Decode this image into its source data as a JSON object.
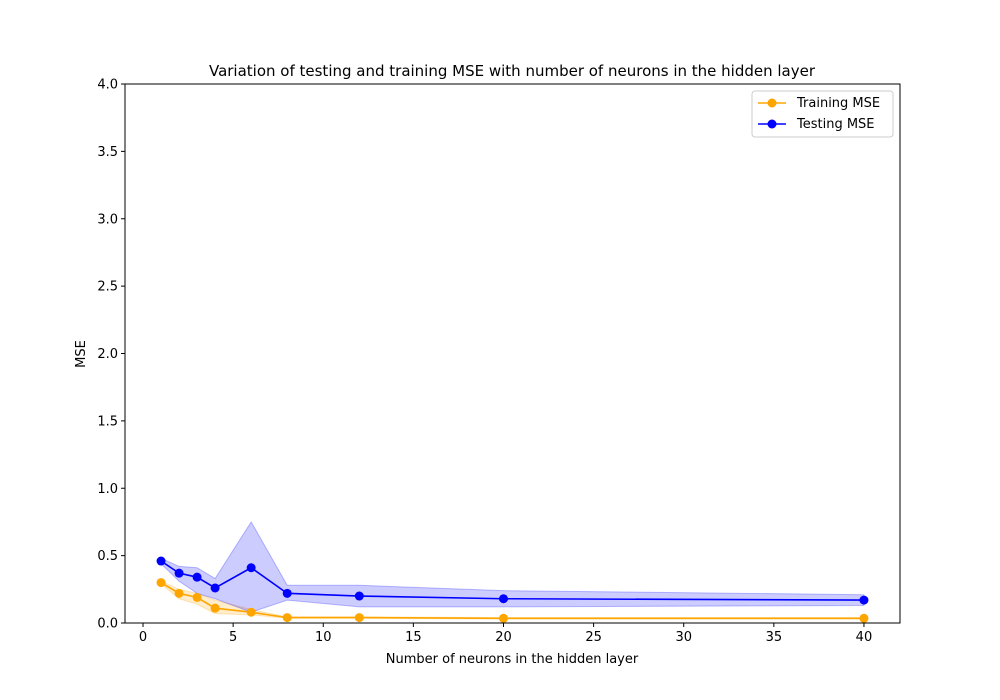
{
  "chart_data": {
    "type": "line",
    "title": "Variation of testing and training MSE with number of neurons in the hidden layer",
    "xlabel": "Number of neurons in the hidden layer",
    "ylabel": "MSE",
    "xlim": [
      -1,
      42
    ],
    "ylim": [
      0,
      4
    ],
    "xticks": [
      0,
      5,
      10,
      15,
      20,
      25,
      30,
      35,
      40
    ],
    "yticks": [
      0.0,
      0.5,
      1.0,
      1.5,
      2.0,
      2.5,
      3.0,
      3.5,
      4.0
    ],
    "xtick_labels": [
      "0",
      "5",
      "10",
      "15",
      "20",
      "25",
      "30",
      "35",
      "40"
    ],
    "ytick_labels": [
      "0.0",
      "0.5",
      "1.0",
      "1.5",
      "2.0",
      "2.5",
      "3.0",
      "3.5",
      "4.0"
    ],
    "grid": false,
    "legend_position": "top-right",
    "x": [
      1,
      2,
      3,
      4,
      6,
      8,
      12,
      20,
      40
    ],
    "series": [
      {
        "name": "Training MSE",
        "color": "#ffa500",
        "values": [
          0.3,
          0.22,
          0.19,
          0.11,
          0.08,
          0.04,
          0.04,
          0.035,
          0.035
        ],
        "lower": [
          0.29,
          0.18,
          0.14,
          0.07,
          0.06,
          0.035,
          0.035,
          0.03,
          0.03
        ],
        "upper": [
          0.31,
          0.25,
          0.22,
          0.17,
          0.1,
          0.045,
          0.045,
          0.04,
          0.04
        ]
      },
      {
        "name": "Testing MSE",
        "color": "#0000ff",
        "values": [
          0.46,
          0.37,
          0.34,
          0.26,
          0.41,
          0.22,
          0.2,
          0.18,
          0.17
        ],
        "lower": [
          0.44,
          0.31,
          0.22,
          0.18,
          0.08,
          0.17,
          0.12,
          0.12,
          0.13
        ],
        "upper": [
          0.48,
          0.42,
          0.41,
          0.33,
          0.75,
          0.28,
          0.28,
          0.24,
          0.21
        ]
      }
    ]
  }
}
